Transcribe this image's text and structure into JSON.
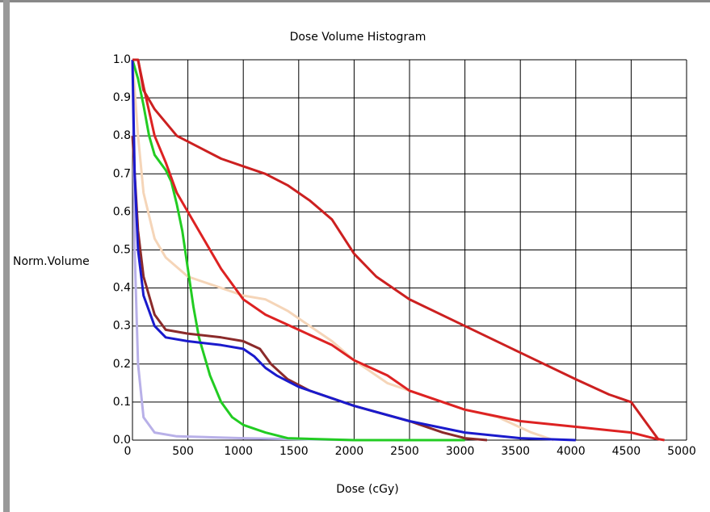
{
  "chart_data": {
    "type": "line",
    "title": "Dose Volume Histogram",
    "xlabel": "Dose (cGy)",
    "ylabel": "Norm.Volume",
    "xlim": [
      0,
      5000
    ],
    "ylim": [
      0,
      1.0
    ],
    "xticks": [
      0,
      500,
      1000,
      1500,
      2000,
      2500,
      3000,
      3500,
      4000,
      4500,
      5000
    ],
    "yticks": [
      {
        "value": 0,
        "label": "0.0"
      },
      0.1,
      0.2,
      0.3,
      0.4,
      0.5,
      0.6,
      0.7,
      0.8,
      0.9,
      {
        "value": 1,
        "label": "1.0"
      }
    ],
    "grid": true,
    "series": [
      {
        "color": "#f5d5b8",
        "x": [
          0,
          50,
          100,
          200,
          300,
          500,
          800,
          1000,
          1200,
          1400,
          1600,
          1800,
          2000,
          2300,
          2600,
          3000,
          3300,
          3600,
          3800
        ],
        "values": [
          1.0,
          0.8,
          0.65,
          0.53,
          0.48,
          0.43,
          0.4,
          0.38,
          0.37,
          0.34,
          0.3,
          0.26,
          0.21,
          0.15,
          0.12,
          0.08,
          0.06,
          0.02,
          0
        ]
      },
      {
        "color": "#b8b0e8",
        "x": [
          0,
          20,
          50,
          100,
          200,
          400,
          1000,
          2000
        ],
        "values": [
          1.0,
          0.5,
          0.2,
          0.06,
          0.02,
          0.01,
          0.005,
          0
        ]
      },
      {
        "color": "#22cc22",
        "x": [
          0,
          50,
          100,
          150,
          200,
          300,
          350,
          400,
          450,
          500,
          550,
          600,
          700,
          800,
          900,
          1000,
          1200,
          1400,
          2000,
          3000
        ],
        "values": [
          1.0,
          0.95,
          0.88,
          0.8,
          0.75,
          0.71,
          0.68,
          0.62,
          0.55,
          0.45,
          0.35,
          0.27,
          0.17,
          0.1,
          0.06,
          0.04,
          0.02,
          0.005,
          0,
          0
        ]
      },
      {
        "color": "#8b2a2a",
        "x": [
          0,
          50,
          100,
          200,
          300,
          500,
          800,
          1000,
          1150,
          1250,
          1400,
          1600,
          2000,
          2500,
          2800,
          3000,
          3200
        ],
        "values": [
          0.8,
          0.55,
          0.43,
          0.33,
          0.29,
          0.28,
          0.27,
          0.26,
          0.24,
          0.2,
          0.16,
          0.13,
          0.09,
          0.05,
          0.02,
          0.005,
          0
        ]
      },
      {
        "color": "#1a1acc",
        "x": [
          0,
          20,
          50,
          100,
          200,
          300,
          500,
          800,
          1000,
          1100,
          1200,
          1300,
          1500,
          2000,
          2500,
          3000,
          3500,
          4000
        ],
        "values": [
          1.0,
          0.7,
          0.5,
          0.38,
          0.3,
          0.27,
          0.26,
          0.25,
          0.24,
          0.22,
          0.19,
          0.17,
          0.14,
          0.09,
          0.05,
          0.02,
          0.005,
          0
        ]
      },
      {
        "color": "#dd2222",
        "x": [
          50,
          100,
          200,
          300,
          400,
          600,
          800,
          1000,
          1200,
          1500,
          1800,
          2000,
          2300,
          2500,
          3000,
          3500,
          4000,
          4500,
          4700,
          4800
        ],
        "values": [
          1.0,
          0.93,
          0.8,
          0.73,
          0.65,
          0.55,
          0.45,
          0.37,
          0.33,
          0.29,
          0.25,
          0.21,
          0.17,
          0.13,
          0.08,
          0.05,
          0.035,
          0.02,
          0.005,
          0
        ]
      },
      {
        "color": "#cc2020",
        "x": [
          0,
          50,
          100,
          200,
          400,
          600,
          800,
          1000,
          1200,
          1400,
          1600,
          1800,
          2000,
          2200,
          2500,
          3000,
          3500,
          4000,
          4300,
          4500,
          4600,
          4750
        ],
        "values": [
          1.0,
          1.0,
          0.92,
          0.87,
          0.8,
          0.77,
          0.74,
          0.72,
          0.7,
          0.67,
          0.63,
          0.58,
          0.49,
          0.43,
          0.37,
          0.3,
          0.23,
          0.16,
          0.12,
          0.1,
          0.06,
          0
        ]
      }
    ]
  }
}
